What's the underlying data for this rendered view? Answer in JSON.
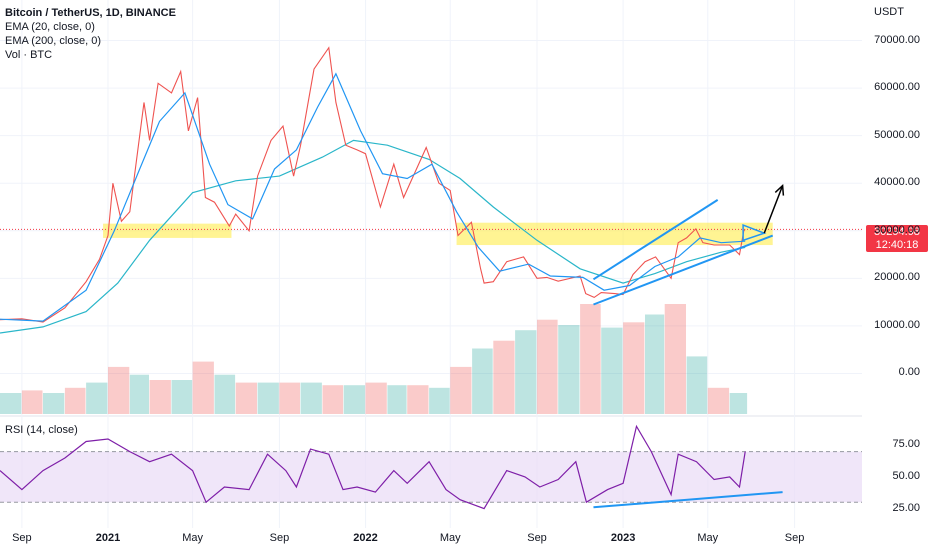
{
  "legend": {
    "symbol": "Bitcoin / TetherUS, 1D, BINANCE",
    "ema20": "EMA (20, close, 0)",
    "ema200": "EMA (200, close, 0)",
    "vol": "Vol · BTC"
  },
  "rsi_label": "RSI (14, close)",
  "currency": "USDT",
  "price_tag": {
    "price": "30294.98",
    "countdown": "12:40:18"
  },
  "colors": {
    "up": "#26a69a",
    "down": "#ef5350",
    "ema20": "#2196f3",
    "ema200": "#2ab6c9",
    "zone": "#ffeb3b",
    "trendline": "#2196f3",
    "rsi": "#7e1fa8",
    "rsi_band": "#e9dcf7",
    "price_line": "#f23645",
    "arrow": "#000000"
  },
  "chart_data": [
    {
      "type": "line",
      "title": "Bitcoin / TetherUS, 1D, BINANCE",
      "ylabel": "USDT",
      "y_ticks": [
        "70000.00",
        "60000.00",
        "50000.00",
        "40000.00",
        "30000.00",
        "20000.00",
        "10000.00",
        "0.00"
      ],
      "x_ticks": [
        "Sep",
        "2021",
        "May",
        "Sep",
        "2022",
        "May",
        "Sep",
        "2023",
        "May",
        "Sep"
      ],
      "ylim": [
        -6000,
        76000
      ],
      "series": [
        {
          "name": "BTC close",
          "x": [
            "2020-08-01",
            "2020-09-01",
            "2020-10-01",
            "2020-11-01",
            "2020-12-01",
            "2020-12-20",
            "2021-01-01",
            "2021-01-08",
            "2021-01-20",
            "2021-02-01",
            "2021-02-21",
            "2021-03-01",
            "2021-03-13",
            "2021-04-01",
            "2021-04-14",
            "2021-04-25",
            "2021-05-08",
            "2021-05-19",
            "2021-06-01",
            "2021-06-22",
            "2021-07-01",
            "2021-07-20",
            "2021-08-01",
            "2021-08-20",
            "2021-09-06",
            "2021-09-21",
            "2021-10-01",
            "2021-10-20",
            "2021-11-10",
            "2021-11-20",
            "2021-12-04",
            "2021-12-20",
            "2022-01-01",
            "2022-01-22",
            "2022-02-10",
            "2022-02-24",
            "2022-03-28",
            "2022-04-15",
            "2022-05-01",
            "2022-05-12",
            "2022-05-31",
            "2022-06-13",
            "2022-06-18",
            "2022-07-01",
            "2022-07-20",
            "2022-08-13",
            "2022-09-01",
            "2022-09-15",
            "2022-10-01",
            "2022-11-01",
            "2022-11-09",
            "2022-11-21",
            "2022-12-01",
            "2022-12-20",
            "2023-01-01",
            "2023-01-15",
            "2023-02-01",
            "2023-02-16",
            "2023-03-10",
            "2023-03-20",
            "2023-04-01",
            "2023-04-14",
            "2023-04-24",
            "2023-05-10",
            "2023-06-01",
            "2023-06-15",
            "2023-06-21",
            "2023-06-23"
          ],
          "y": [
            11300,
            11500,
            10800,
            13800,
            19300,
            24000,
            29000,
            40000,
            32000,
            34000,
            57000,
            49000,
            61000,
            59000,
            63500,
            51000,
            58000,
            37000,
            36000,
            31000,
            33500,
            30000,
            41500,
            49000,
            52000,
            41500,
            48000,
            64000,
            68500,
            57000,
            48000,
            47000,
            46200,
            35000,
            44000,
            37000,
            47500,
            40000,
            38500,
            29000,
            31800,
            22000,
            19000,
            19300,
            23500,
            24500,
            20000,
            20200,
            19400,
            20500,
            16800,
            16000,
            17000,
            16800,
            16600,
            20800,
            23500,
            24500,
            20000,
            27500,
            28500,
            30400,
            27500,
            27000,
            27000,
            25000,
            30000,
            30294
          ]
        },
        {
          "name": "EMA 20",
          "x": [
            "2020-08-01",
            "2020-10-01",
            "2020-12-01",
            "2021-01-10",
            "2021-02-15",
            "2021-03-15",
            "2021-04-20",
            "2021-05-25",
            "2021-06-20",
            "2021-07-25",
            "2021-08-25",
            "2021-09-25",
            "2021-10-25",
            "2021-11-20",
            "2021-12-25",
            "2022-01-25",
            "2022-03-01",
            "2022-04-05",
            "2022-05-10",
            "2022-06-10",
            "2022-07-10",
            "2022-08-20",
            "2022-09-20",
            "2022-11-05",
            "2022-12-05",
            "2023-01-10",
            "2023-02-15",
            "2023-03-20",
            "2023-04-20",
            "2023-05-20",
            "2023-06-23"
          ],
          "y": [
            11400,
            11000,
            17500,
            30000,
            43000,
            53000,
            59000,
            44000,
            35500,
            32500,
            43000,
            47000,
            56000,
            63000,
            51000,
            42000,
            41000,
            44000,
            34000,
            26500,
            21500,
            23000,
            20500,
            20200,
            17500,
            18500,
            22500,
            24500,
            28500,
            27500,
            27800
          ]
        },
        {
          "name": "EMA 200",
          "x": [
            "2020-08-01",
            "2020-10-01",
            "2020-12-01",
            "2021-01-15",
            "2021-03-01",
            "2021-05-01",
            "2021-07-01",
            "2021-09-01",
            "2021-11-01",
            "2021-12-15",
            "2022-02-01",
            "2022-04-01",
            "2022-05-15",
            "2022-07-01",
            "2022-09-01",
            "2022-11-01",
            "2023-01-01",
            "2023-02-15",
            "2023-04-01",
            "2023-05-20",
            "2023-06-23"
          ],
          "y": [
            8500,
            9800,
            13000,
            19000,
            28000,
            38000,
            40500,
            41500,
            45500,
            49000,
            48000,
            45000,
            41000,
            35000,
            28000,
            22000,
            19000,
            21000,
            23500,
            25500,
            26500
          ]
        }
      ],
      "annotations": {
        "support_zones": [
          {
            "x0": "2020-12-25",
            "x1": "2021-06-25",
            "y0": 28500,
            "y1": 31500
          },
          {
            "x0": "2022-05-10",
            "x1": "2023-08-01",
            "y0": 27000,
            "y1": 31700
          }
        ],
        "channel_lines": [
          {
            "x0": "2022-11-20",
            "y0": 19800,
            "x1": "2023-05-15",
            "y1": 36500
          },
          {
            "x0": "2022-11-20",
            "y0": 14500,
            "x1": "2023-08-01",
            "y1": 29000
          }
        ],
        "triangle": [
          [
            "2023-06-20",
            31200
          ],
          [
            "2023-07-20",
            29500
          ],
          [
            "2023-06-20",
            28000
          ]
        ],
        "arrow": {
          "x0": "2023-07-20",
          "y0": 29500,
          "x1": "2023-08-15",
          "y1": 39500
        },
        "current_price": 30294.98
      }
    },
    {
      "type": "bar",
      "title": "Vol · BTC",
      "x": [
        "2020-08",
        "2020-09",
        "2020-10",
        "2020-11",
        "2020-12",
        "2021-01",
        "2021-02",
        "2021-03",
        "2021-04",
        "2021-05",
        "2021-06",
        "2021-07",
        "2021-08",
        "2021-09",
        "2021-10",
        "2021-11",
        "2021-12",
        "2022-01",
        "2022-02",
        "2022-03",
        "2022-04",
        "2022-05",
        "2022-06",
        "2022-07",
        "2022-08",
        "2022-09",
        "2022-10",
        "2022-11",
        "2022-12",
        "2023-01",
        "2023-02",
        "2023-03",
        "2023-04",
        "2023-05",
        "2023-06"
      ],
      "values": [
        0.8,
        0.9,
        0.8,
        1.0,
        1.2,
        1.8,
        1.5,
        1.3,
        1.3,
        2.0,
        1.5,
        1.2,
        1.2,
        1.2,
        1.2,
        1.1,
        1.1,
        1.2,
        1.1,
        1.1,
        1.0,
        1.8,
        2.5,
        2.8,
        3.2,
        3.6,
        3.4,
        4.2,
        3.3,
        3.5,
        3.8,
        4.2,
        2.2,
        1.0,
        0.8
      ]
    },
    {
      "type": "line",
      "title": "RSI (14, close)",
      "y_ticks": [
        "75.00",
        "50.00",
        "25.00"
      ],
      "ylim": [
        12,
        95
      ],
      "bands": {
        "upper": 70,
        "lower": 30
      },
      "series": [
        {
          "name": "RSI",
          "x": [
            "2020-08-01",
            "2020-09-01",
            "2020-10-01",
            "2020-11-01",
            "2020-12-01",
            "2021-01-01",
            "2021-02-01",
            "2021-03-01",
            "2021-04-01",
            "2021-05-01",
            "2021-05-20",
            "2021-06-15",
            "2021-07-20",
            "2021-08-15",
            "2021-09-10",
            "2021-09-25",
            "2021-10-15",
            "2021-11-10",
            "2021-11-30",
            "2021-12-20",
            "2022-01-15",
            "2022-02-10",
            "2022-03-01",
            "2022-04-01",
            "2022-04-25",
            "2022-05-15",
            "2022-06-18",
            "2022-07-20",
            "2022-08-15",
            "2022-09-05",
            "2022-10-01",
            "2022-10-26",
            "2022-11-10",
            "2022-12-10",
            "2023-01-01",
            "2023-01-20",
            "2023-02-10",
            "2023-03-10",
            "2023-03-20",
            "2023-04-15",
            "2023-05-10",
            "2023-06-01",
            "2023-06-15",
            "2023-06-23"
          ],
          "y": [
            55,
            40,
            55,
            65,
            78,
            80,
            70,
            62,
            68,
            55,
            30,
            42,
            40,
            68,
            55,
            42,
            72,
            68,
            40,
            42,
            38,
            55,
            45,
            62,
            40,
            32,
            25,
            55,
            50,
            42,
            48,
            62,
            30,
            40,
            45,
            90,
            70,
            36,
            68,
            62,
            48,
            50,
            42,
            70
          ]
        }
      ],
      "annotations": {
        "trendline": {
          "x0": "2022-11-20",
          "y0": 26,
          "x1": "2023-08-15",
          "y1": 38
        }
      }
    }
  ]
}
